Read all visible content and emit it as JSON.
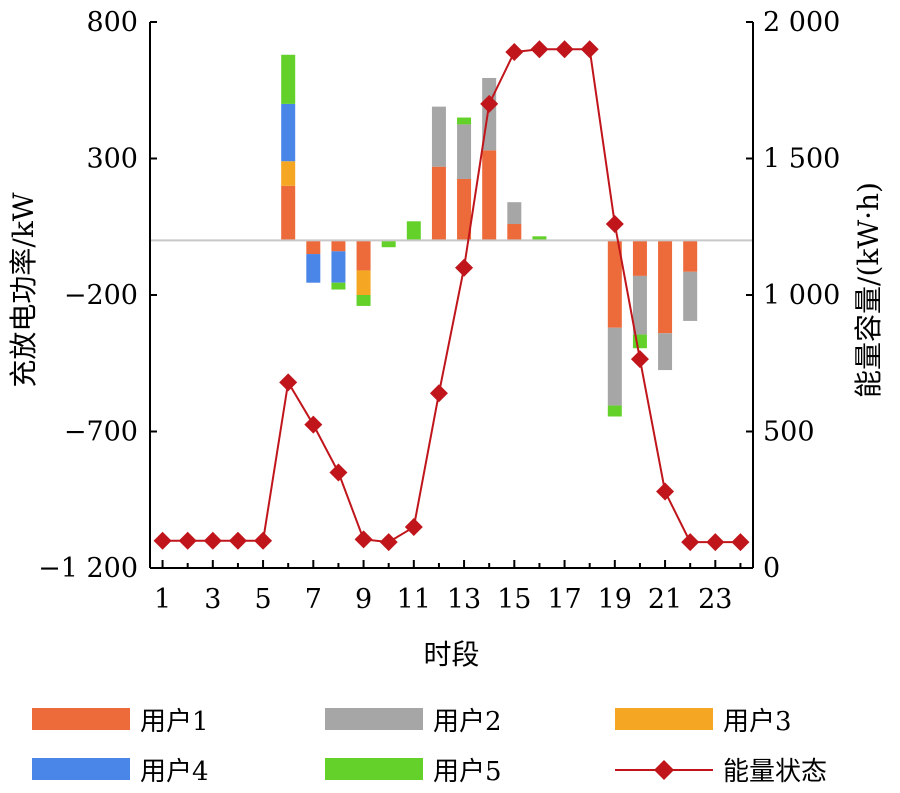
{
  "chart_data": {
    "type": "bar",
    "bar_mode": "stacked",
    "x": [
      1,
      2,
      3,
      4,
      5,
      6,
      7,
      8,
      9,
      10,
      11,
      12,
      13,
      14,
      15,
      16,
      17,
      18,
      19,
      20,
      21,
      22,
      23,
      24
    ],
    "xtick_labels": [
      "1",
      "3",
      "5",
      "7",
      "9",
      "11",
      "13",
      "15",
      "17",
      "19",
      "21",
      "23"
    ],
    "xlabel": "时段",
    "ylabel_left": "充放电功率/kW",
    "ylabel_right": "能量容量/(kW·h)",
    "ylim_left": [
      -1200,
      800
    ],
    "yticks_left": [
      "800",
      "300",
      "−200",
      "−700",
      "−1 200"
    ],
    "ylim_right": [
      0,
      2000
    ],
    "yticks_right": [
      "2 000",
      "1 500",
      "1 000",
      "500",
      "0"
    ],
    "series": [
      {
        "name": "用户1",
        "color": "#ed6a3a",
        "values": [
          0,
          0,
          0,
          0,
          0,
          200,
          -50,
          -40,
          -110,
          0,
          0,
          270,
          225,
          330,
          60,
          0,
          0,
          0,
          -320,
          -130,
          -340,
          -115,
          0,
          0
        ]
      },
      {
        "name": "用户2",
        "color": "#a6a6a6",
        "values": [
          0,
          0,
          0,
          0,
          0,
          0,
          0,
          0,
          0,
          0,
          0,
          220,
          200,
          265,
          80,
          0,
          0,
          0,
          -285,
          -215,
          -135,
          -180,
          0,
          0
        ]
      },
      {
        "name": "用户3",
        "color": "#f5a623",
        "values": [
          0,
          0,
          0,
          0,
          0,
          90,
          0,
          0,
          -90,
          0,
          0,
          0,
          0,
          0,
          0,
          0,
          0,
          0,
          0,
          0,
          0,
          0,
          0,
          0
        ]
      },
      {
        "name": "用户4",
        "color": "#4a86e8",
        "values": [
          0,
          0,
          0,
          0,
          0,
          210,
          -105,
          -115,
          0,
          0,
          0,
          0,
          0,
          0,
          0,
          0,
          0,
          0,
          0,
          0,
          0,
          0,
          0,
          0
        ]
      },
      {
        "name": "用户5",
        "color": "#63d12a",
        "values": [
          0,
          0,
          0,
          0,
          0,
          180,
          0,
          -25,
          -40,
          -25,
          70,
          0,
          25,
          0,
          0,
          15,
          0,
          0,
          -40,
          -50,
          0,
          0,
          0,
          0
        ]
      }
    ],
    "line_series": {
      "name": "能量状态",
      "color": "#c0151b",
      "axis": "right",
      "values": [
        100,
        100,
        100,
        100,
        100,
        680,
        525,
        350,
        105,
        95,
        150,
        640,
        1100,
        1700,
        1890,
        1900,
        1900,
        1900,
        1260,
        765,
        280,
        95,
        95,
        95
      ]
    },
    "zero_line_color": "#c8c8c8",
    "legend_position": "bottom"
  }
}
